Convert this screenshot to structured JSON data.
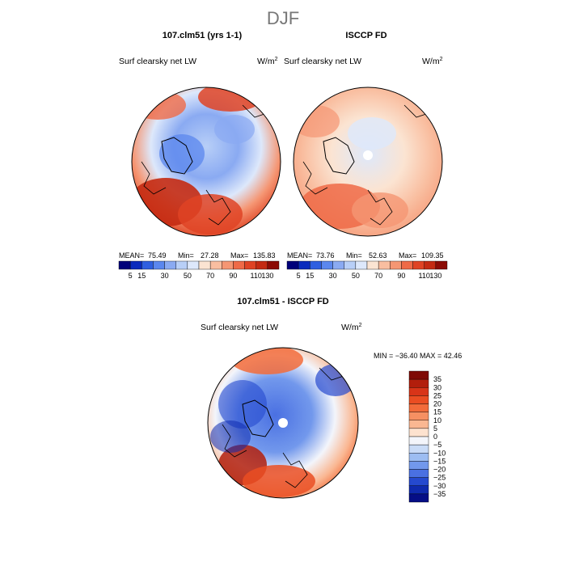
{
  "figure": {
    "season": "DJF",
    "panels": [
      {
        "title": "107.clm51 (yrs 1-1)",
        "variable": "Surf clearsky net LW",
        "units": "W/m",
        "units_sup": "2",
        "stats": {
          "mean_label": "MEAN=",
          "mean": "75.49",
          "min_label": "Min=",
          "min": "27.28",
          "max_label": "Max=",
          "max": "135.83"
        }
      },
      {
        "title": "ISCCP FD",
        "variable": "Surf clearsky net LW",
        "units": "W/m",
        "units_sup": "2",
        "stats": {
          "mean_label": "MEAN=",
          "mean": "73.76",
          "min_label": "Min=",
          "min": "52.63",
          "max_label": "Max=",
          "max": "109.35"
        }
      }
    ],
    "diff_panel": {
      "title": "107.clm51 - ISCCP FD",
      "variable": "Surf clearsky net LW",
      "units": "W/m",
      "units_sup": "2",
      "minmax": "MIN = −36.40  MAX =   42.46"
    }
  },
  "chart_data": [
    {
      "type": "heatmap",
      "projection": "polar stereographic (north pole)",
      "title": "107.clm51 (yrs 1-1)",
      "variable": "Surf clearsky net LW",
      "units": "W/m^2",
      "stats": {
        "mean": 75.49,
        "min": 27.28,
        "max": 135.83
      },
      "colorbar": {
        "orientation": "horizontal",
        "levels": [
          5,
          15,
          30,
          50,
          70,
          90,
          110,
          130
        ],
        "colors": [
          "#00007a",
          "#0a2bbd",
          "#2f5fe0",
          "#5b87ee",
          "#8aaaf2",
          "#b8cff7",
          "#dde8fb",
          "#fbe4d2",
          "#f9bea0",
          "#f59673",
          "#ef6a47",
          "#df4324",
          "#c42a12",
          "#8c0b05"
        ]
      }
    },
    {
      "type": "heatmap",
      "projection": "polar stereographic (north pole)",
      "title": "ISCCP FD",
      "variable": "Surf clearsky net LW",
      "units": "W/m^2",
      "stats": {
        "mean": 73.76,
        "min": 52.63,
        "max": 109.35
      },
      "colorbar": {
        "orientation": "horizontal",
        "levels": [
          5,
          15,
          30,
          50,
          70,
          90,
          110,
          130
        ],
        "colors": [
          "#00007a",
          "#0a2bbd",
          "#2f5fe0",
          "#5b87ee",
          "#8aaaf2",
          "#b8cff7",
          "#dde8fb",
          "#fbe4d2",
          "#f9bea0",
          "#f59673",
          "#ef6a47",
          "#df4324",
          "#c42a12",
          "#8c0b05"
        ]
      }
    },
    {
      "type": "heatmap",
      "projection": "polar stereographic (north pole)",
      "title": "107.clm51 - ISCCP FD",
      "variable": "Surf clearsky net LW",
      "units": "W/m^2",
      "stats": {
        "min": -36.4,
        "max": 42.46
      },
      "colorbar": {
        "orientation": "vertical",
        "levels": [
          35,
          30,
          25,
          20,
          15,
          10,
          5,
          0,
          -5,
          -10,
          -15,
          -20,
          -25,
          -30,
          -35
        ],
        "tick_labels": [
          "35",
          "30",
          "25",
          "20",
          "15",
          "10",
          "5",
          "0",
          "−5",
          "−10",
          "−15",
          "−20",
          "−25",
          "−30",
          "−35"
        ],
        "colors": [
          "#7f0a05",
          "#b21e0c",
          "#d83418",
          "#ea4d22",
          "#f26b3a",
          "#f69062",
          "#fab792",
          "#fde2cf",
          "#f3f5fb",
          "#c9dbf7",
          "#9dbdf2",
          "#7298ec",
          "#4a70e2",
          "#2549cf",
          "#0f2aae",
          "#050e86"
        ]
      }
    }
  ]
}
